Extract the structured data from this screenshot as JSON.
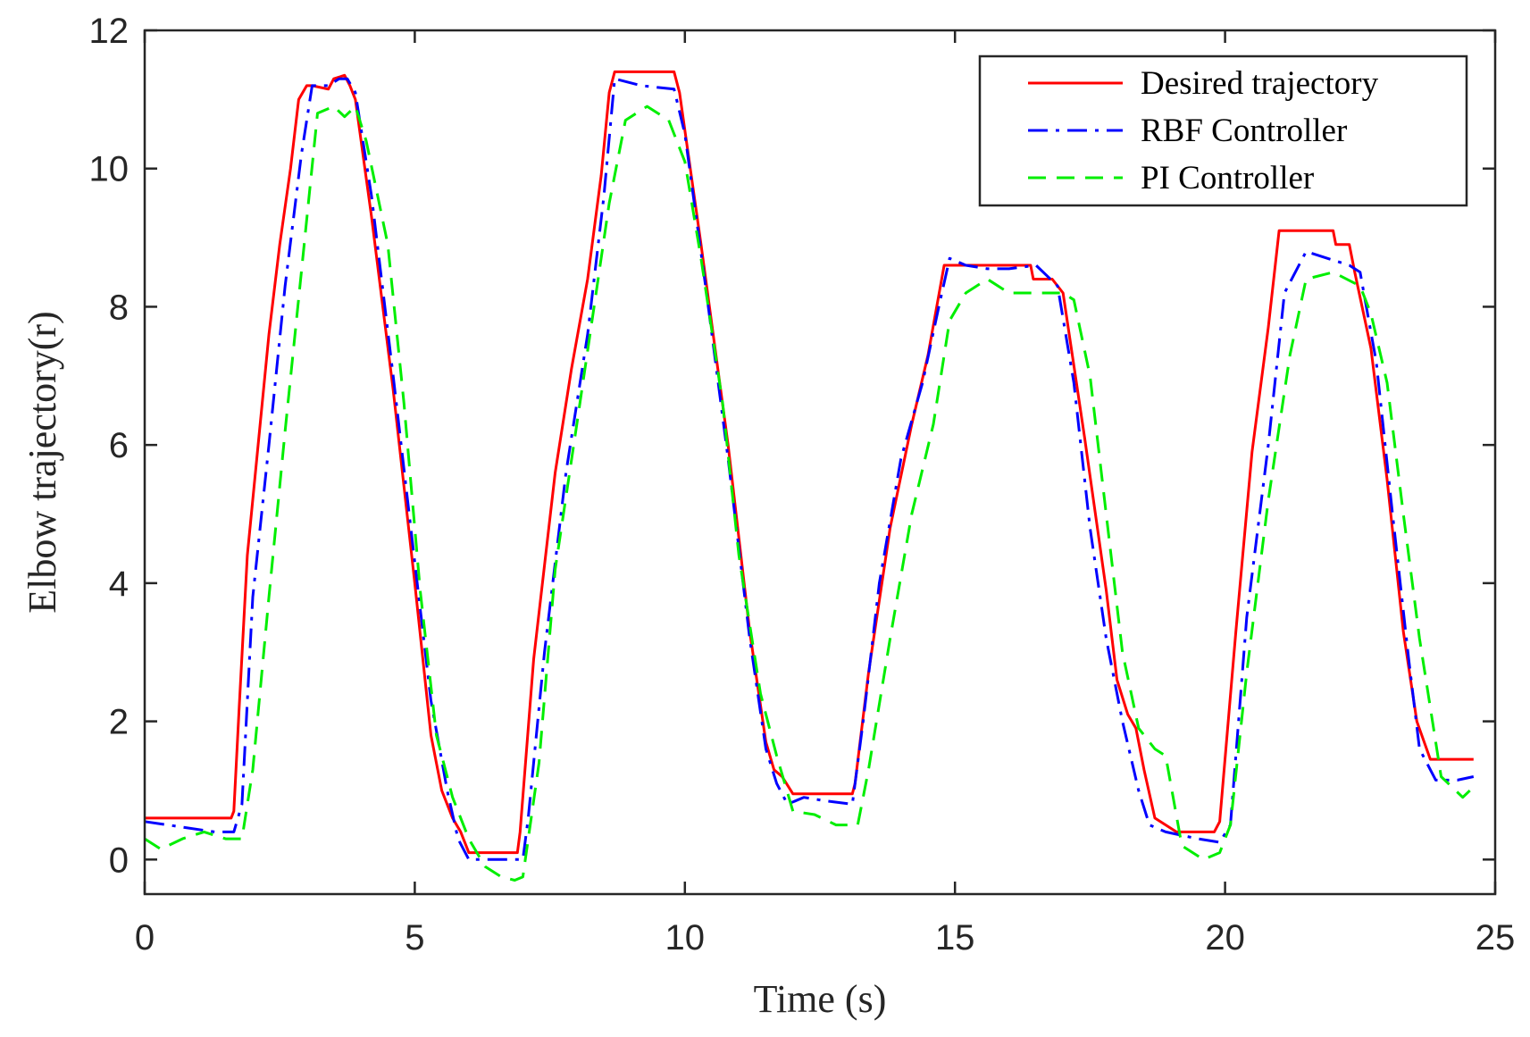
{
  "chart_data": {
    "type": "line",
    "title": "",
    "xlabel": "Time (s)",
    "ylabel": "Elbow trajectory(r)",
    "xlim": [
      0,
      25
    ],
    "ylim": [
      -0.5,
      12
    ],
    "xticks": [
      0,
      5,
      10,
      15,
      20,
      25
    ],
    "yticks": [
      0,
      2,
      4,
      6,
      8,
      10,
      12
    ],
    "xtick_labels": [
      "0",
      "5",
      "10",
      "15",
      "20",
      "25"
    ],
    "ytick_labels": [
      "0",
      "2",
      "4",
      "6",
      "8",
      "10",
      "12"
    ],
    "grid": false,
    "legend_position": "top-right",
    "series": [
      {
        "name": "Desired trajectory",
        "color": "#ff0000",
        "style": "solid",
        "x": [
          0,
          1.6,
          1.65,
          1.75,
          1.9,
          2.1,
          2.3,
          2.5,
          2.7,
          2.85,
          3.0,
          3.1,
          3.4,
          3.5,
          3.7,
          3.8,
          3.9,
          4.2,
          4.6,
          5.0,
          5.3,
          5.5,
          5.7,
          5.85,
          6.0,
          6.2,
          6.4,
          6.9,
          6.95,
          7.2,
          7.6,
          7.9,
          8.2,
          8.45,
          8.6,
          8.7,
          9.0,
          9.5,
          9.8,
          9.9,
          10.3,
          10.8,
          11.2,
          11.5,
          11.65,
          11.8,
          12.0,
          12.5,
          13.1,
          13.15,
          13.4,
          13.8,
          14.2,
          14.5,
          14.8,
          15.2,
          15.8,
          16.4,
          16.45,
          16.8,
          17.0,
          17.4,
          17.8,
          18.0,
          18.2,
          18.35,
          18.5,
          18.7,
          19.1,
          19.5,
          19.8,
          19.9,
          20.2,
          20.5,
          20.8,
          21.0,
          21.5,
          22.0,
          22.05,
          22.3,
          22.4,
          22.7,
          23.0,
          23.3,
          23.55,
          23.8,
          24.6
        ],
        "y": [
          0.6,
          0.6,
          0.7,
          2.2,
          4.4,
          6.0,
          7.6,
          8.9,
          10.0,
          11.0,
          11.2,
          11.2,
          11.15,
          11.3,
          11.35,
          11.2,
          11.0,
          9.3,
          6.8,
          4.0,
          1.8,
          1.0,
          0.6,
          0.4,
          0.1,
          0.1,
          0.1,
          0.1,
          0.4,
          2.9,
          5.6,
          7.1,
          8.4,
          9.9,
          11.1,
          11.4,
          11.4,
          11.4,
          11.4,
          11.1,
          8.9,
          6.0,
          3.3,
          1.7,
          1.3,
          1.2,
          0.95,
          0.95,
          0.95,
          1.1,
          2.7,
          4.8,
          6.3,
          7.3,
          8.6,
          8.6,
          8.6,
          8.6,
          8.4,
          8.4,
          8.2,
          6.1,
          3.9,
          2.6,
          2.1,
          1.9,
          1.3,
          0.6,
          0.4,
          0.4,
          0.4,
          0.55,
          3.3,
          5.9,
          7.7,
          9.1,
          9.1,
          9.1,
          8.9,
          8.9,
          8.5,
          7.4,
          5.5,
          3.3,
          2.0,
          1.45,
          1.45
        ]
      },
      {
        "name": "RBF Controller",
        "color": "#0000ff",
        "style": "dashdot",
        "x": [
          0,
          1.3,
          1.65,
          1.8,
          2.0,
          2.3,
          2.6,
          2.9,
          3.1,
          3.4,
          3.6,
          3.75,
          3.9,
          4.2,
          4.6,
          5.0,
          5.3,
          5.6,
          5.8,
          6.0,
          6.5,
          7.0,
          7.1,
          7.4,
          7.8,
          8.2,
          8.5,
          8.7,
          9.2,
          9.8,
          10.0,
          10.4,
          10.8,
          11.2,
          11.5,
          11.7,
          11.9,
          12.2,
          12.6,
          13.1,
          13.3,
          13.6,
          14.0,
          14.4,
          14.7,
          14.9,
          15.2,
          15.6,
          16.0,
          16.5,
          16.7,
          16.9,
          17.2,
          17.5,
          17.8,
          18.1,
          18.4,
          18.6,
          18.9,
          19.5,
          19.9,
          20.1,
          20.4,
          20.8,
          21.1,
          21.5,
          22.3,
          22.5,
          22.8,
          23.1,
          23.4,
          23.6,
          23.9,
          24.3,
          24.6
        ],
        "y": [
          0.55,
          0.4,
          0.4,
          0.8,
          3.8,
          6.0,
          8.3,
          10.2,
          11.2,
          11.2,
          11.3,
          11.3,
          11.1,
          9.6,
          7.0,
          4.3,
          2.3,
          1.0,
          0.3,
          0.0,
          0.0,
          0.0,
          0.6,
          3.0,
          5.6,
          7.6,
          9.6,
          11.3,
          11.2,
          11.15,
          10.5,
          8.2,
          5.8,
          3.2,
          1.6,
          1.1,
          0.8,
          0.9,
          0.85,
          0.8,
          2.0,
          4.0,
          5.8,
          6.9,
          8.0,
          8.7,
          8.6,
          8.55,
          8.55,
          8.6,
          8.45,
          8.3,
          6.9,
          4.8,
          3.2,
          2.0,
          1.0,
          0.5,
          0.4,
          0.3,
          0.25,
          0.5,
          3.5,
          6.0,
          8.2,
          8.8,
          8.6,
          8.5,
          7.2,
          5.0,
          2.9,
          1.6,
          1.15,
          1.15,
          1.2
        ]
      },
      {
        "name": "PI Controller",
        "color": "#00ee00",
        "style": "dashed",
        "x": [
          0,
          0.3,
          0.7,
          1.1,
          1.5,
          1.8,
          2.0,
          2.3,
          2.6,
          2.9,
          3.2,
          3.5,
          3.7,
          3.9,
          4.1,
          4.5,
          4.8,
          5.1,
          5.4,
          5.7,
          6.0,
          6.3,
          6.6,
          6.85,
          7.0,
          7.3,
          7.6,
          8.0,
          8.3,
          8.6,
          8.9,
          9.3,
          9.7,
          10.0,
          10.3,
          10.7,
          11.0,
          11.4,
          11.7,
          12.0,
          12.4,
          12.8,
          13.2,
          13.4,
          13.8,
          14.2,
          14.6,
          14.9,
          15.2,
          15.6,
          16.0,
          16.5,
          17.0,
          17.2,
          17.5,
          17.8,
          18.1,
          18.4,
          18.7,
          18.9,
          19.2,
          19.6,
          19.9,
          20.1,
          20.4,
          20.8,
          21.2,
          21.5,
          22.0,
          22.5,
          22.7,
          23.0,
          23.3,
          23.6,
          24.0,
          24.4,
          24.6
        ],
        "y": [
          0.3,
          0.15,
          0.3,
          0.4,
          0.3,
          0.3,
          1.3,
          3.8,
          6.2,
          8.5,
          10.8,
          10.9,
          10.75,
          10.9,
          10.4,
          8.9,
          6.6,
          3.9,
          1.8,
          0.9,
          0.3,
          -0.1,
          -0.25,
          -0.3,
          -0.25,
          1.4,
          4.2,
          6.3,
          7.9,
          9.5,
          10.7,
          10.9,
          10.7,
          10.1,
          8.7,
          6.6,
          4.4,
          2.4,
          1.5,
          0.7,
          0.65,
          0.5,
          0.5,
          1.3,
          3.2,
          5.0,
          6.3,
          7.8,
          8.2,
          8.4,
          8.2,
          8.2,
          8.2,
          8.1,
          7.0,
          5.0,
          3.0,
          1.9,
          1.6,
          1.5,
          0.2,
          0.0,
          0.1,
          0.5,
          2.7,
          5.2,
          7.3,
          8.4,
          8.5,
          8.3,
          7.9,
          6.9,
          5.0,
          3.2,
          1.2,
          0.9,
          1.05
        ]
      }
    ]
  }
}
